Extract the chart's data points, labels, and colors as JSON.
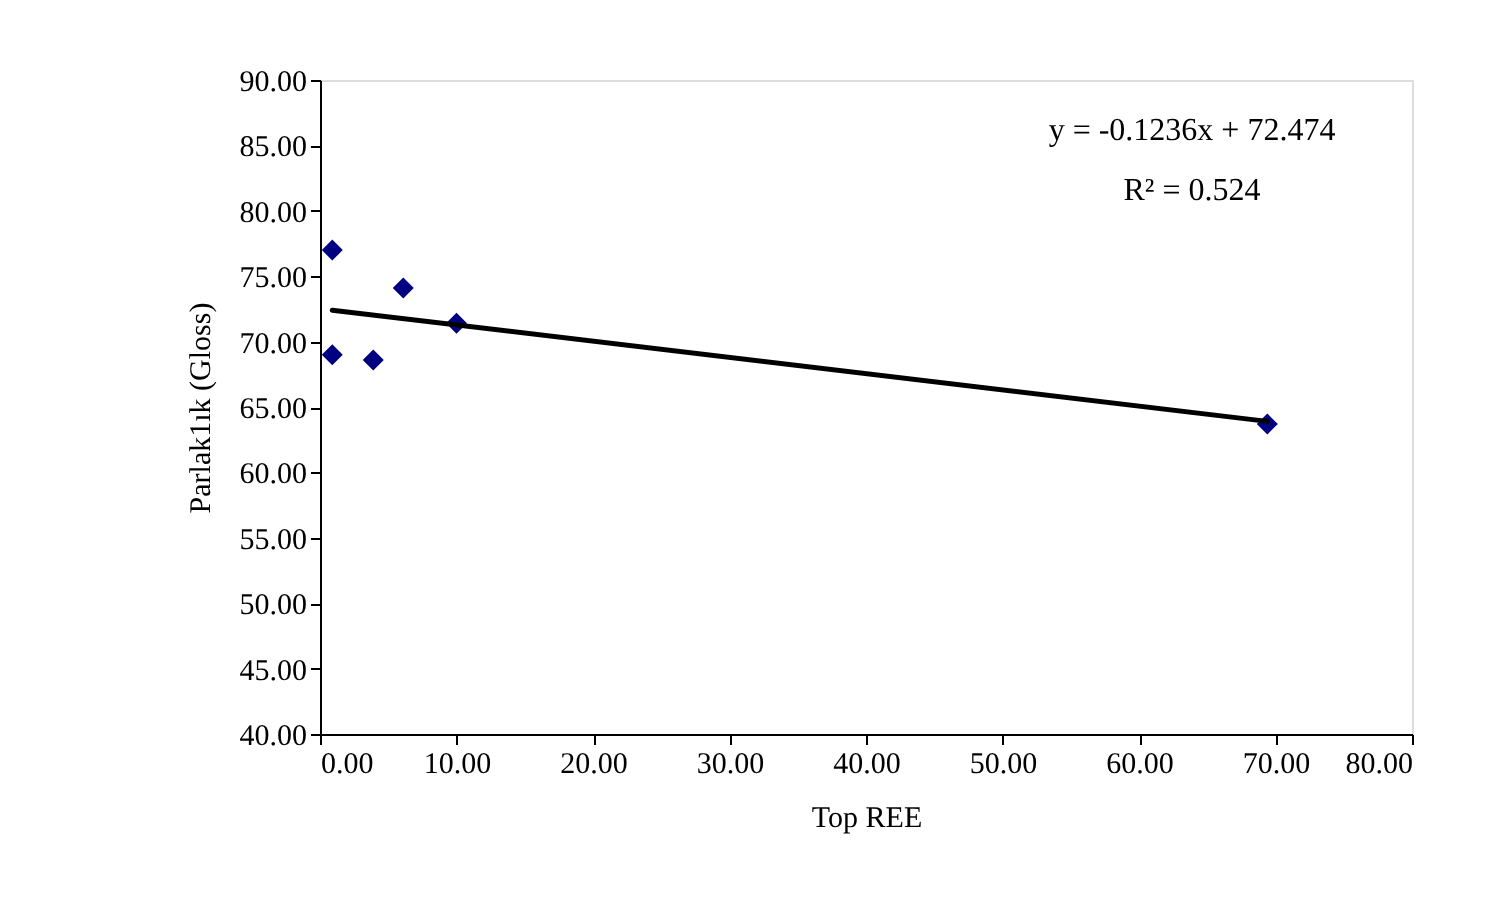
{
  "chart_data": {
    "type": "scatter",
    "xlabel": "Top REE",
    "ylabel": "Parlak1ık (Gloss)",
    "series": [
      {
        "color": "#000080",
        "marker": "diamond",
        "x": [
          0.9,
          0.9,
          3.9,
          6.1,
          10.0,
          69.4
        ],
        "values": [
          77.0,
          69.0,
          68.6,
          74.1,
          71.4,
          63.7
        ]
      },
      {
        "type": "line",
        "color": "#000000",
        "marker": "none",
        "line_style": "solid",
        "x": [
          0.9,
          69.4
        ],
        "values": [
          72.4,
          63.9
        ]
      }
    ],
    "annotations": [
      "y = -0.1236x + 72.474",
      "R² = 0.524"
    ],
    "xlim": [
      0,
      80
    ],
    "xticks": [
      {
        "value": 0,
        "label": "0.00"
      },
      {
        "value": 10,
        "label": "10.00"
      },
      {
        "value": 20,
        "label": "20.00"
      },
      {
        "value": 30,
        "label": "30.00"
      },
      {
        "value": 40,
        "label": "40.00"
      },
      {
        "value": 50,
        "label": "50.00"
      },
      {
        "value": 60,
        "label": "60.00"
      },
      {
        "value": 70,
        "label": "70.00"
      },
      {
        "value": 80,
        "label": "80.00"
      }
    ],
    "ylim": [
      40,
      90
    ],
    "yticks": [
      {
        "value": 40,
        "label": "40.00"
      },
      {
        "value": 45,
        "label": "45.00"
      },
      {
        "value": 50,
        "label": "50.00"
      },
      {
        "value": 55,
        "label": "55.00"
      },
      {
        "value": 60,
        "label": "60.00"
      },
      {
        "value": 65,
        "label": "65.00"
      },
      {
        "value": 70,
        "label": "70.00"
      },
      {
        "value": 75,
        "label": "75.00"
      },
      {
        "value": 80,
        "label": "80.00"
      },
      {
        "value": 85,
        "label": "85.00"
      },
      {
        "value": 90,
        "label": "90.00"
      }
    ],
    "grid": false
  }
}
